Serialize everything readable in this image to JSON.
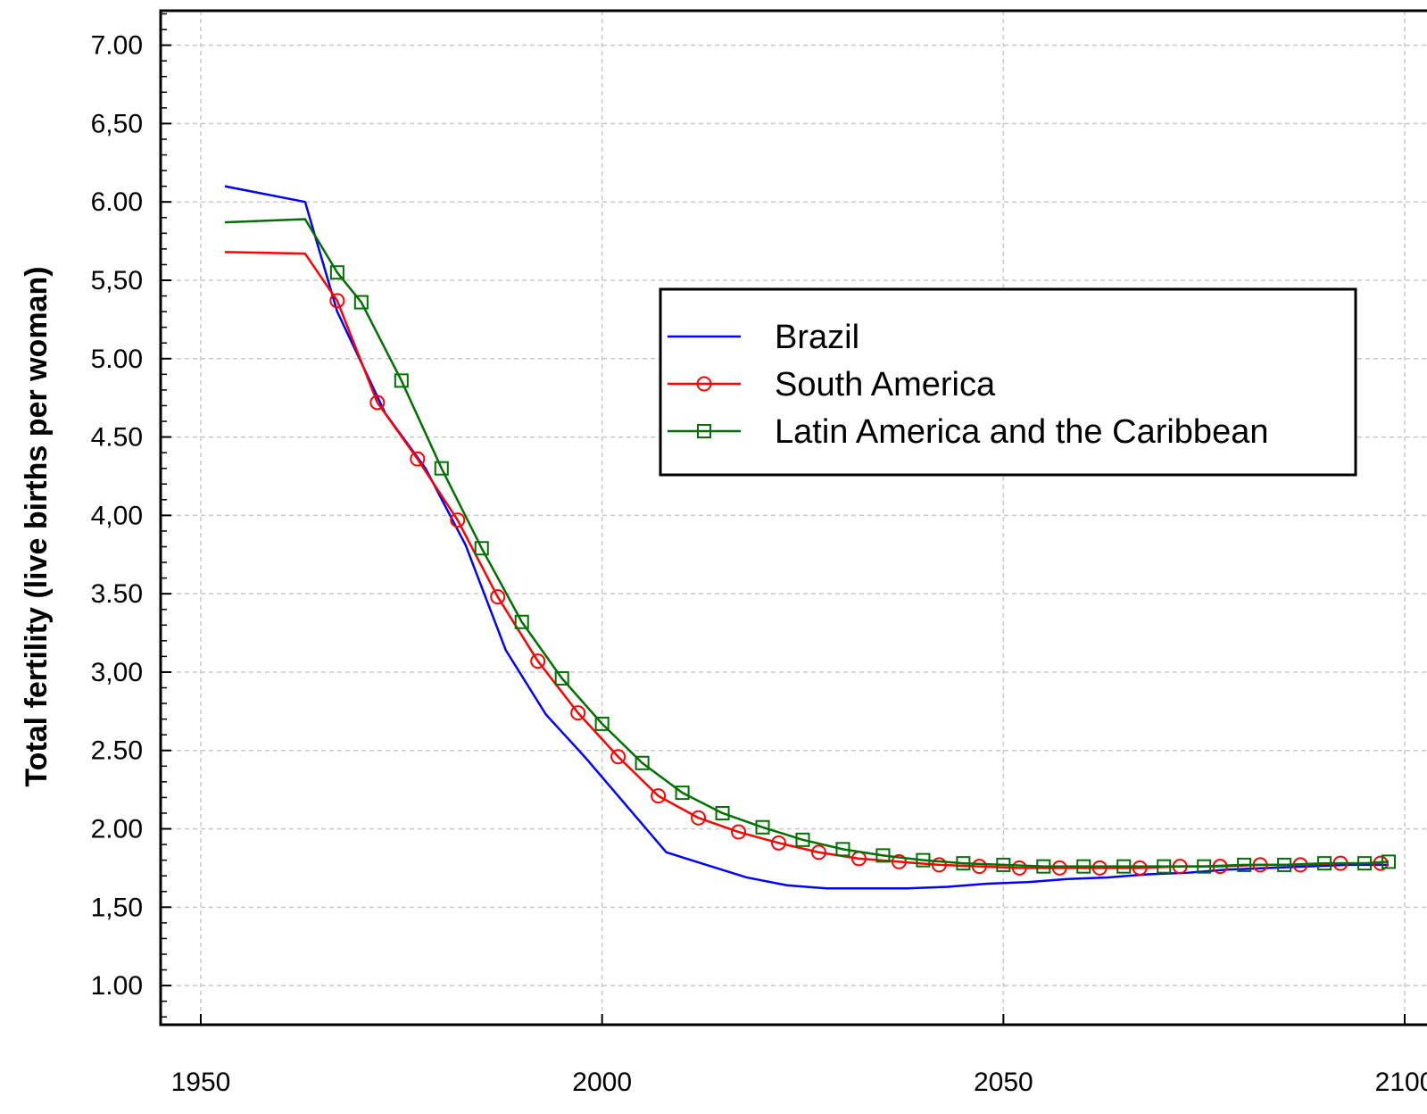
{
  "chart_data": {
    "type": "line",
    "title": "",
    "xlabel": "",
    "ylabel": "Total fertility (live births per woman)",
    "xlim": [
      1945,
      2104
    ],
    "ylim": [
      0.75,
      7.22
    ],
    "grid": true,
    "legend_position": "center-right",
    "x_ticks": [
      1950,
      2000,
      2050,
      2100
    ],
    "x_tick_labels": [
      "1950",
      "2000",
      "2050",
      "2100"
    ],
    "y_ticks": [
      1.0,
      1.5,
      2.0,
      2.5,
      3.0,
      3.5,
      4.0,
      4.5,
      5.0,
      5.5,
      6.0,
      6.5,
      7.0
    ],
    "y_tick_labels": [
      "1.00",
      "1,50",
      "2.00",
      "2.50",
      "3,00",
      "3.50",
      "4,00",
      "4.50",
      "5.00",
      "5,50",
      "6.00",
      "6,50",
      "7.00"
    ],
    "series": [
      {
        "name": "Brazil",
        "color": "#0000ff",
        "marker": "none",
        "x": [
          1953,
          1963,
          1967,
          1973,
          1978,
          1983,
          1988,
          1993,
          1998,
          2003,
          2008,
          2013,
          2018,
          2023,
          2028,
          2033,
          2038,
          2043,
          2048,
          2053,
          2058,
          2063,
          2068,
          2073,
          2078,
          2083,
          2088,
          2093,
          2098
        ],
        "y": [
          6.1,
          6.0,
          5.3,
          4.65,
          4.3,
          3.81,
          3.14,
          2.73,
          2.45,
          2.15,
          1.85,
          1.77,
          1.69,
          1.64,
          1.62,
          1.62,
          1.62,
          1.63,
          1.65,
          1.66,
          1.68,
          1.69,
          1.71,
          1.72,
          1.74,
          1.75,
          1.76,
          1.77,
          1.77
        ]
      },
      {
        "name": "South America",
        "color": "#ff0000",
        "marker": "circle",
        "x": [
          1953,
          1963,
          1967,
          1972,
          1977,
          1982,
          1987,
          1992,
          1997,
          2002,
          2007,
          2012,
          2017,
          2022,
          2027,
          2032,
          2037,
          2042,
          2047,
          2052,
          2057,
          2062,
          2067,
          2072,
          2077,
          2082,
          2087,
          2092,
          2097
        ],
        "y": [
          5.68,
          5.67,
          5.37,
          4.72,
          4.36,
          3.97,
          3.48,
          3.07,
          2.74,
          2.46,
          2.21,
          2.07,
          1.98,
          1.91,
          1.85,
          1.81,
          1.79,
          1.77,
          1.76,
          1.75,
          1.75,
          1.75,
          1.75,
          1.76,
          1.76,
          1.77,
          1.77,
          1.78,
          1.78
        ]
      },
      {
        "name": "Latin America and the Caribbean",
        "color": "#007000",
        "marker": "square",
        "x": [
          1953,
          1963,
          1967,
          1970,
          1975,
          1980,
          1985,
          1990,
          1995,
          2000,
          2005,
          2010,
          2015,
          2020,
          2025,
          2030,
          2035,
          2040,
          2045,
          2050,
          2055,
          2060,
          2065,
          2070,
          2075,
          2080,
          2085,
          2090,
          2095,
          2098
        ],
        "y": [
          5.87,
          5.89,
          5.55,
          5.36,
          4.86,
          4.3,
          3.79,
          3.32,
          2.96,
          2.67,
          2.42,
          2.23,
          2.1,
          2.01,
          1.93,
          1.87,
          1.83,
          1.8,
          1.78,
          1.77,
          1.76,
          1.76,
          1.76,
          1.76,
          1.76,
          1.77,
          1.77,
          1.78,
          1.78,
          1.79
        ]
      }
    ]
  }
}
